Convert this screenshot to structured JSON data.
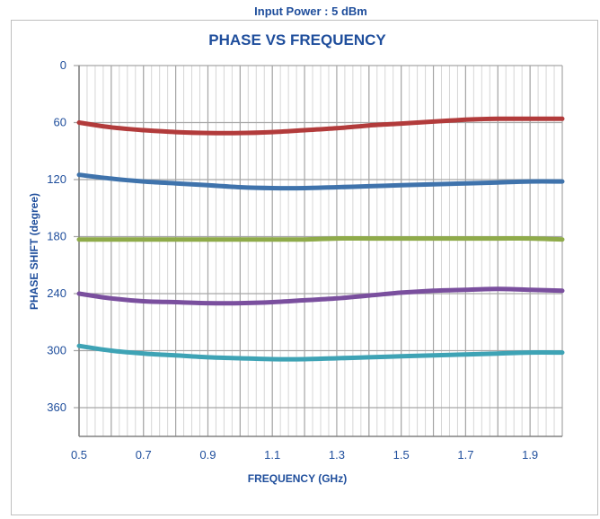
{
  "chart_data": {
    "type": "line",
    "subtitle": "Input Power : 5 dBm",
    "title": "PHASE VS FREQUENCY",
    "xlabel": "FREQUENCY (GHz)",
    "ylabel": "PHASE SHIFT (degree)",
    "xlim": [
      0.5,
      2.0
    ],
    "ylim": [
      0,
      360
    ],
    "y_reversed": true,
    "x_ticks": [
      "0.5",
      "0.7",
      "0.9",
      "1.1",
      "1.3",
      "1.5",
      "1.7",
      "1.9"
    ],
    "y_ticks": [
      "0",
      "60",
      "120",
      "180",
      "240",
      "300",
      "360"
    ],
    "grid": true,
    "x": [
      0.5,
      0.6,
      0.7,
      0.8,
      0.9,
      1.0,
      1.1,
      1.2,
      1.3,
      1.4,
      1.5,
      1.6,
      1.7,
      1.8,
      1.9,
      2.0
    ],
    "series": [
      {
        "color": "#b23b3b",
        "values": [
          60,
          65,
          68,
          70,
          71,
          71,
          70,
          68,
          66,
          63,
          61,
          59,
          57,
          56,
          56,
          56
        ]
      },
      {
        "color": "#3f73ac",
        "values": [
          115,
          119,
          122,
          124,
          126,
          128,
          129,
          129,
          128,
          127,
          126,
          125,
          124,
          123,
          122,
          122
        ]
      },
      {
        "color": "#8fab4a",
        "values": [
          183,
          183,
          183,
          183,
          183,
          183,
          183,
          183,
          182,
          182,
          182,
          182,
          182,
          182,
          182,
          183
        ]
      },
      {
        "color": "#7a4f9e",
        "values": [
          240,
          245,
          248,
          249,
          250,
          250,
          249,
          247,
          245,
          242,
          239,
          237,
          236,
          235,
          236,
          237
        ]
      },
      {
        "color": "#3ea3b5",
        "values": [
          295,
          300,
          303,
          305,
          307,
          308,
          309,
          309,
          308,
          307,
          306,
          305,
          304,
          303,
          302,
          302
        ]
      }
    ]
  }
}
